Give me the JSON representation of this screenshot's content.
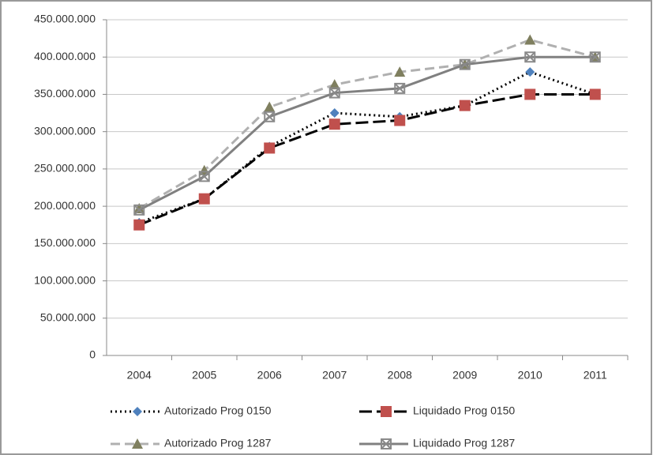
{
  "chart_data": {
    "type": "line",
    "categories": [
      "2004",
      "2005",
      "2006",
      "2007",
      "2008",
      "2009",
      "2010",
      "2011"
    ],
    "series": [
      {
        "name": "Autorizado Prog 0150",
        "color": "#000000",
        "marker_color": "#4f81bd",
        "marker": "diamond",
        "dash": "2,4",
        "values": [
          178000000,
          210000000,
          280000000,
          325000000,
          320000000,
          335000000,
          380000000,
          350000000
        ]
      },
      {
        "name": "Liquidado Prog 0150",
        "color": "#000000",
        "marker_color": "#c0504d",
        "marker": "square",
        "dash": "16,6",
        "values": [
          175000000,
          210000000,
          278000000,
          310000000,
          315000000,
          335000000,
          350000000,
          350000000
        ]
      },
      {
        "name": "Autorizado Prog 1287",
        "color": "#b0b0b0",
        "marker_color": "#7f7f5f",
        "marker": "triangle",
        "dash": "12,6",
        "values": [
          197000000,
          248000000,
          333000000,
          363000000,
          380000000,
          390000000,
          423000000,
          400000000
        ]
      },
      {
        "name": "Liquidado Prog 1287",
        "color": "#808080",
        "marker_color": "#8a8a8a",
        "marker": "xsquare",
        "dash": "",
        "values": [
          195000000,
          240000000,
          320000000,
          352000000,
          358000000,
          390000000,
          400000000,
          400000000
        ]
      }
    ],
    "ylim": [
      0,
      450000000
    ],
    "yticks": [
      0,
      {
        "value": 50000000,
        "label": "50.000.000"
      },
      {
        "value": 100000000,
        "label": "100.000.000"
      },
      {
        "value": 150000000,
        "label": "150.000.000"
      },
      {
        "value": 200000000,
        "label": "200.000.000"
      },
      {
        "value": 250000000,
        "label": "250.000.000"
      },
      {
        "value": 300000000,
        "label": "300.000.000"
      },
      {
        "value": 350000000,
        "label": "350.000.000"
      },
      {
        "value": 400000000,
        "label": "400.000.000"
      },
      {
        "value": 450000000,
        "label": "450.000.000"
      }
    ],
    "grid": true
  }
}
